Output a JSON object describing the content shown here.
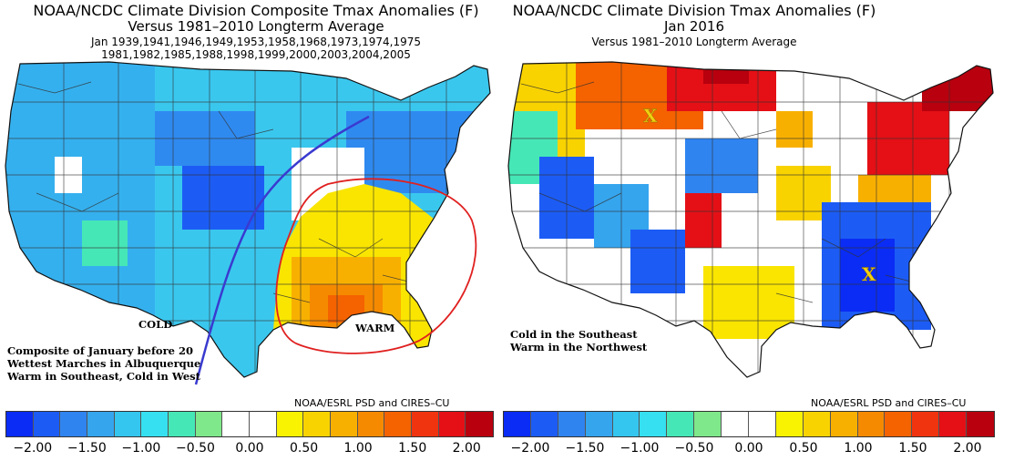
{
  "left": {
    "title_line1": "NOAA/NCDC Climate Division Composite Tmax Anomalies (F)",
    "title_line2": "Versus 1981–2010 Longterm Average",
    "title_line3": "Jan   1939,1941,1946,1949,1953,1958,1968,1973,1974,1975",
    "title_line4": "1981,1982,1985,1988,1998,1999,2000,2003,2004,2005",
    "label_cold": "COLD",
    "label_warm": "WARM",
    "note_lines": [
      "Composite of January before 20",
      "Wettest Marches in Albuquerque",
      "Warm in Southeast, Cold in West"
    ],
    "credit": "NOAA/ESRL PSD and CIRES–CU"
  },
  "right": {
    "title_line1": "NOAA/NCDC Climate Division Tmax Anomalies (F)",
    "title_line2": "Jan 2016",
    "title_line3": "Versus 1981–2010 Longterm Average",
    "marker_north": "X",
    "marker_south": "X",
    "note_lines": [
      "Cold in the Southeast",
      "Warm in the Northwest"
    ],
    "credit": "NOAA/ESRL PSD and CIRES–CU"
  },
  "colorbar": {
    "colors": [
      "#0a2cf5",
      "#1c5cf5",
      "#2f84f0",
      "#35a5ee",
      "#34c6ee",
      "#36e0f0",
      "#46e7b6",
      "#7fe88a",
      "#ffffff",
      "#ffffff",
      "#f9f200",
      "#f9d300",
      "#f8b000",
      "#f58a00",
      "#f56200",
      "#f03410",
      "#e41016",
      "#b8000e"
    ],
    "tick_labels": [
      "−2.00",
      "−1.50",
      "−1.00",
      "−0.50",
      "0.00",
      "0.50",
      "1.00",
      "1.50",
      "2.00"
    ]
  },
  "palette": {
    "cold_line": "#3a3ad0",
    "warm_circle": "#e02020",
    "marker": "#f0d010"
  }
}
